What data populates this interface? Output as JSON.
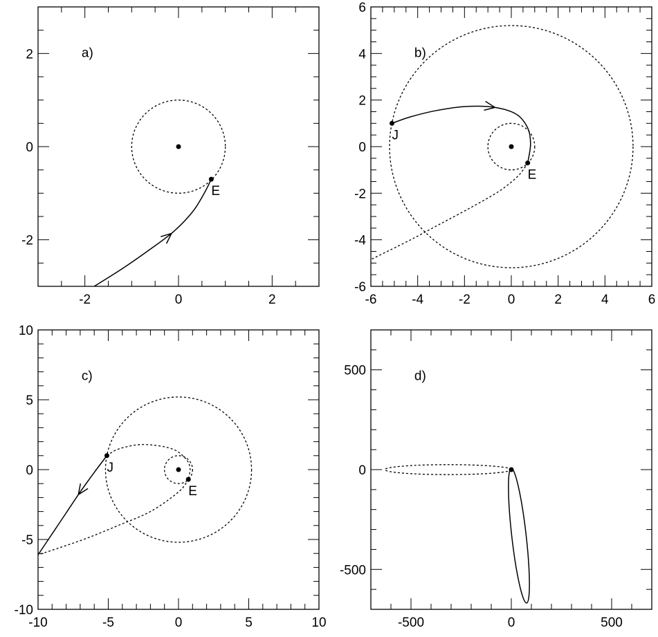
{
  "chart_data": [
    {
      "type": "line",
      "panel_label": "a)",
      "xlim": [
        -3,
        3
      ],
      "ylim": [
        -3,
        3
      ],
      "xticks": [
        -2,
        0,
        2
      ],
      "yticks": [
        -2,
        0,
        2
      ],
      "xtick_labels": [
        "-2",
        "0",
        "2"
      ],
      "ytick_labels": [
        "-2",
        "0",
        "2"
      ],
      "minor_step": 0.5,
      "center_point": [
        0,
        0
      ],
      "circles": [
        {
          "cx": 0,
          "cy": 0,
          "r": 1.0,
          "style": "dotted"
        }
      ],
      "series": [
        {
          "style": "solid",
          "arrows": [
            {
              "at": 0.58,
              "dir": 1
            }
          ],
          "x": [
            -1.8,
            -1.2,
            -0.6,
            -0.1,
            0.3,
            0.55,
            0.7
          ],
          "y": [
            -3.0,
            -2.62,
            -2.2,
            -1.82,
            -1.4,
            -1.0,
            -0.7
          ]
        }
      ],
      "points": [
        {
          "label": "E",
          "x": 0.7,
          "y": -0.7
        }
      ]
    },
    {
      "type": "line",
      "panel_label": "b)",
      "xlim": [
        -6,
        6
      ],
      "ylim": [
        -6,
        6
      ],
      "xticks": [
        -6,
        -4,
        -2,
        0,
        2,
        4,
        6
      ],
      "yticks": [
        -6,
        -4,
        -2,
        0,
        2,
        4,
        6
      ],
      "xtick_labels": [
        "-6",
        "-4",
        "-2",
        "0",
        "2",
        "4",
        "6"
      ],
      "ytick_labels": [
        "-6",
        "-4",
        "-2",
        "0",
        "2",
        "4",
        "6"
      ],
      "minor_step": 0.5,
      "center_point": [
        0,
        0
      ],
      "circles": [
        {
          "cx": 0,
          "cy": 0,
          "r": 1.0,
          "style": "dotted"
        },
        {
          "cx": 0,
          "cy": 0,
          "r": 5.2,
          "style": "dotted"
        }
      ],
      "series": [
        {
          "style": "solid",
          "arrows": [
            {
              "at": 0.42,
              "dir": -1
            }
          ],
          "x": [
            0.7,
            0.82,
            0.7,
            0.2,
            -0.8,
            -2.0,
            -3.2,
            -4.3,
            -5.1
          ],
          "y": [
            -0.7,
            0.1,
            0.8,
            1.4,
            1.7,
            1.72,
            1.55,
            1.28,
            1.0
          ]
        },
        {
          "style": "dotted",
          "arrows": [],
          "x": [
            0.7,
            0.3,
            -0.5,
            -1.7,
            -3.0,
            -4.3,
            -5.5,
            -6.0
          ],
          "y": [
            -0.7,
            -1.25,
            -1.9,
            -2.6,
            -3.3,
            -4.0,
            -4.6,
            -4.85
          ]
        }
      ],
      "points": [
        {
          "label": "J",
          "x": -5.1,
          "y": 1.0
        },
        {
          "label": "E",
          "x": 0.7,
          "y": -0.7
        }
      ]
    },
    {
      "type": "line",
      "panel_label": "c)",
      "xlim": [
        -10,
        10
      ],
      "ylim": [
        -10,
        10
      ],
      "xticks": [
        -10,
        -5,
        0,
        5,
        10
      ],
      "yticks": [
        -10,
        -5,
        0,
        5,
        10
      ],
      "xtick_labels": [
        "-10",
        "-5",
        "0",
        "5",
        "10"
      ],
      "ytick_labels": [
        "-10",
        "-5",
        "0",
        "5",
        "10"
      ],
      "minor_step": 1,
      "center_point": [
        0,
        0
      ],
      "circles": [
        {
          "cx": 0,
          "cy": 0,
          "r": 1.0,
          "style": "dotted"
        },
        {
          "cx": 0,
          "cy": 0,
          "r": 5.2,
          "style": "dotted"
        }
      ],
      "series": [
        {
          "style": "solid",
          "arrows": [
            {
              "at": 0.4,
              "dir": 1
            }
          ],
          "x": [
            -5.1,
            -6.0,
            -7.0,
            -8.0,
            -9.0,
            -10.0
          ],
          "y": [
            1.0,
            -0.2,
            -1.6,
            -3.1,
            -4.6,
            -6.1
          ]
        },
        {
          "style": "dotted",
          "arrows": [],
          "x": [
            -5.1,
            -4.2,
            -2.5,
            -0.5,
            0.5,
            0.82,
            0.7
          ],
          "y": [
            1.0,
            1.5,
            1.8,
            1.5,
            0.8,
            0.1,
            -0.7
          ]
        },
        {
          "style": "dotted",
          "arrows": [],
          "x": [
            0.7,
            0.0,
            -2.0,
            -4.3,
            -6.5,
            -8.5,
            -10.0
          ],
          "y": [
            -0.7,
            -1.6,
            -3.0,
            -4.0,
            -4.9,
            -5.6,
            -6.1
          ]
        }
      ],
      "points": [
        {
          "label": "J",
          "x": -5.1,
          "y": 1.0
        },
        {
          "label": "E",
          "x": 0.7,
          "y": -0.7
        }
      ]
    },
    {
      "type": "line",
      "panel_label": "d)",
      "xlim": [
        -700,
        700
      ],
      "ylim": [
        -700,
        700
      ],
      "xticks": [
        -500,
        0,
        500
      ],
      "yticks": [
        -500,
        0,
        500
      ],
      "xtick_labels": [
        "-500",
        "0",
        "500"
      ],
      "ytick_labels": [
        "-500",
        "0",
        "500"
      ],
      "minor_step": 100,
      "center_point": [
        0,
        0
      ],
      "circles": [],
      "ellipses": [
        {
          "cx": -315,
          "cy": 0,
          "rx": 315,
          "ry": 25,
          "rotate": 0,
          "style": "dotted"
        },
        {
          "cx": 38,
          "cy": -331,
          "rx": 338,
          "ry": 36,
          "rotate": 83.5,
          "style": "solid"
        }
      ],
      "series": [],
      "points": []
    }
  ]
}
